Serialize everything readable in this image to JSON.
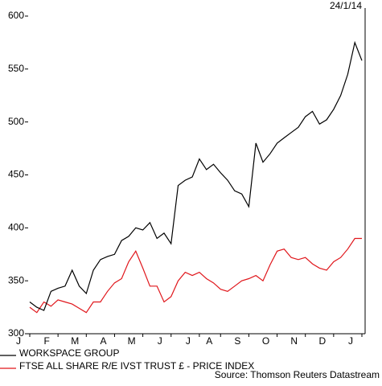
{
  "chart_data": {
    "type": "line",
    "date": "24/1/14",
    "source": "Source: Thomson Reuters Datastream",
    "categories": [
      "J",
      null,
      null,
      null,
      "F",
      null,
      null,
      null,
      "M",
      null,
      null,
      null,
      "A",
      null,
      null,
      null,
      "M",
      null,
      null,
      null,
      "J",
      null,
      null,
      null,
      "J",
      null,
      null,
      "A",
      null,
      null,
      null,
      "S",
      null,
      null,
      null,
      "O",
      null,
      null,
      null,
      "N",
      null,
      null,
      null,
      "D",
      null,
      null,
      null,
      "J"
    ],
    "series": [
      {
        "name": "WORKSPACE GROUP",
        "color": "#000000",
        "values": [
          330,
          325,
          322,
          340,
          343,
          345,
          360,
          345,
          338,
          360,
          370,
          373,
          375,
          388,
          392,
          400,
          398,
          405,
          390,
          395,
          385,
          440,
          445,
          448,
          465,
          455,
          460,
          452,
          445,
          435,
          432,
          420,
          480,
          462,
          470,
          480,
          485,
          490,
          495,
          505,
          510,
          498,
          502,
          512,
          525,
          545,
          575,
          558
        ]
      },
      {
        "name": "FTSE ALL SHARE R/E IVST TRUST £ - PRICE INDEX",
        "color": "#e0161b",
        "values": [
          325,
          320,
          330,
          326,
          332,
          330,
          328,
          324,
          320,
          330,
          330,
          340,
          348,
          352,
          368,
          378,
          362,
          345,
          345,
          330,
          335,
          350,
          358,
          355,
          358,
          352,
          348,
          342,
          340,
          345,
          350,
          352,
          355,
          350,
          365,
          378,
          380,
          372,
          370,
          372,
          366,
          362,
          360,
          368,
          372,
          380,
          390,
          390
        ]
      }
    ],
    "ylim": [
      300,
      600
    ],
    "yticks": [
      300,
      350,
      400,
      450,
      500,
      550,
      600
    ]
  }
}
